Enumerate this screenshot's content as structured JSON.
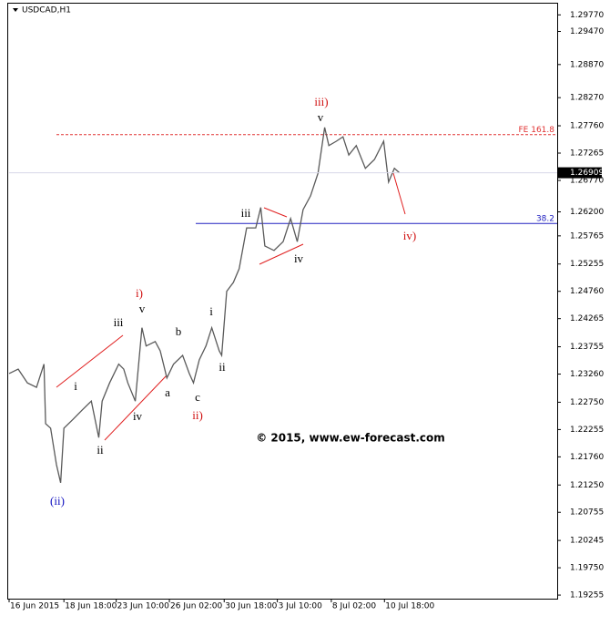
{
  "chart_data": {
    "type": "line",
    "title": "USDCAD,H1",
    "color": "#5a5a5a",
    "x": [
      0,
      11,
      22,
      33,
      42,
      44,
      50,
      57,
      62,
      66,
      77,
      88,
      99,
      108,
      112,
      121,
      132,
      138,
      143,
      152,
      160,
      165,
      176,
      182,
      190,
      198,
      209,
      217,
      222,
      229,
      237,
      244,
      253,
      256,
      262,
      270,
      277,
      286,
      297,
      303,
      308,
      319,
      330,
      339,
      347,
      354,
      363,
      372,
      380,
      385,
      394,
      402,
      409,
      418,
      429,
      440,
      451,
      457,
      464,
      470
    ],
    "values": [
      1.2327,
      1.2335,
      1.231,
      1.2302,
      1.2344,
      1.2236,
      1.2228,
      1.2162,
      1.2129,
      1.2228,
      1.2244,
      1.2261,
      1.2277,
      1.2211,
      1.2277,
      1.231,
      1.2344,
      1.2335,
      1.231,
      1.2277,
      1.241,
      1.2377,
      1.2385,
      1.2368,
      1.2319,
      1.2344,
      1.236,
      1.2327,
      1.231,
      1.2352,
      1.2377,
      1.241,
      1.2368,
      1.236,
      1.2476,
      1.2492,
      1.2517,
      1.2591,
      1.2591,
      1.2628,
      1.2558,
      1.255,
      1.2566,
      1.2608,
      1.2566,
      1.2624,
      1.2649,
      1.269,
      1.2773,
      1.274,
      1.2748,
      1.2756,
      1.2723,
      1.274,
      1.2699,
      1.2715,
      1.2748,
      1.2674,
      1.2699,
      1.26909
    ],
    "xlim": [
      0,
      660
    ],
    "xticks": [
      {
        "value": 0,
        "label": "16 Jun 2015"
      },
      {
        "value": 66,
        "label": "18 Jun 18:00"
      },
      {
        "value": 129,
        "label": "23 Jun 10:00"
      },
      {
        "value": 193,
        "label": "26 Jun 02:00"
      },
      {
        "value": 259,
        "label": "30 Jun 18:00"
      },
      {
        "value": 323,
        "label": "3 Jul 10:00"
      },
      {
        "value": 388,
        "label": "8 Jul 02:00"
      },
      {
        "value": 452,
        "label": "10 Jul 18:00"
      }
    ],
    "ylim": [
      1.1919,
      1.2999
    ],
    "yticks": [
      {
        "value": 1.2977,
        "label": "1.29770"
      },
      {
        "value": 1.2947,
        "label": "1.29470"
      },
      {
        "value": 1.2887,
        "label": "1.28870"
      },
      {
        "value": 1.2827,
        "label": "1.28270"
      },
      {
        "value": 1.2776,
        "label": "1.27760"
      },
      1.27265,
      {
        "value": 1.2677,
        "label": "1.26770"
      },
      {
        "value": 1.262,
        "label": "1.26200"
      },
      1.25765,
      1.25255,
      {
        "value": 1.2476,
        "label": "1.24760"
      },
      1.24265,
      1.23755,
      {
        "value": 1.2326,
        "label": "1.23260"
      },
      {
        "value": 1.2275,
        "label": "1.22750"
      },
      1.22255,
      {
        "value": 1.2176,
        "label": "1.21760"
      },
      {
        "value": 1.2125,
        "label": "1.21250"
      },
      1.20755,
      1.20245,
      {
        "value": 1.1975,
        "label": "1.19750"
      },
      1.19255
    ],
    "last_price": 1.26909,
    "levels": [
      {
        "label": "FE 161.8",
        "value": 1.276,
        "color": "#e03030"
      },
      {
        "label": "38.2",
        "value": 1.2599,
        "color": "#2020c0"
      }
    ],
    "annotations": [
      {
        "text": "iii)",
        "color": "#d01010"
      },
      {
        "text": "v",
        "color": "#000000"
      },
      {
        "text": "iii",
        "color": "#000000"
      },
      {
        "text": "iv",
        "color": "#000000"
      },
      {
        "text": "iv)",
        "color": "#d01010"
      },
      {
        "text": "i)",
        "color": "#d01010"
      },
      {
        "text": "v",
        "color": "#000000"
      },
      {
        "text": "iii",
        "color": "#000000"
      },
      {
        "text": "i",
        "color": "#000000"
      },
      {
        "text": "b",
        "color": "#000000"
      },
      {
        "text": "i",
        "color": "#000000"
      },
      {
        "text": "a",
        "color": "#000000"
      },
      {
        "text": "ii",
        "color": "#000000"
      },
      {
        "text": "c",
        "color": "#000000"
      },
      {
        "text": "ii)",
        "color": "#d01010"
      },
      {
        "text": "iv",
        "color": "#000000"
      },
      {
        "text": "ii",
        "color": "#000000"
      },
      {
        "text": "(ii)",
        "color": "#1010c0"
      }
    ],
    "copyright": "© 2015, www.ew-forecast.com"
  }
}
